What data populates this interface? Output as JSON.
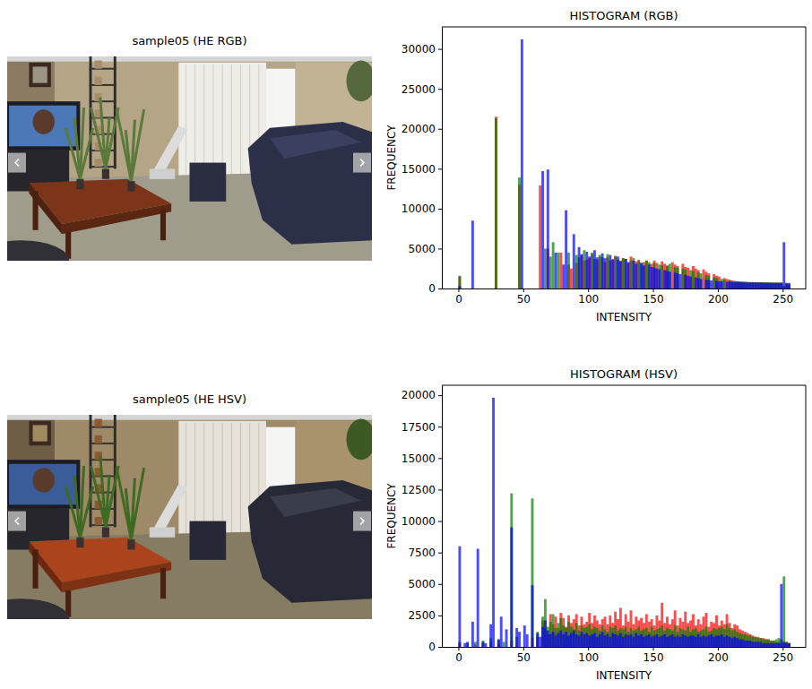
{
  "chart_data": [
    {
      "type": "image",
      "title": "sample05 (HE RGB)"
    },
    {
      "type": "histogram",
      "title": "HISTOGRAM (RGB)",
      "x_label": "INTENSITY",
      "y_label": "FREQUENCY",
      "bins": [
        0,
        2,
        4,
        6,
        8,
        10,
        12,
        14,
        16,
        18,
        20,
        22,
        24,
        26,
        28,
        30,
        32,
        34,
        36,
        38,
        40,
        42,
        44,
        46,
        48,
        50,
        52,
        54,
        56,
        58,
        60,
        62,
        64,
        66,
        68,
        70,
        72,
        74,
        76,
        78,
        80,
        82,
        84,
        86,
        88,
        90,
        92,
        94,
        96,
        98,
        100,
        102,
        104,
        106,
        108,
        110,
        112,
        114,
        116,
        118,
        120,
        122,
        124,
        126,
        128,
        130,
        132,
        134,
        136,
        138,
        140,
        142,
        144,
        146,
        148,
        150,
        152,
        154,
        156,
        158,
        160,
        162,
        164,
        166,
        168,
        170,
        172,
        174,
        176,
        178,
        180,
        182,
        184,
        186,
        188,
        190,
        192,
        194,
        196,
        198,
        200,
        202,
        204,
        206,
        208,
        210,
        212,
        214,
        216,
        218,
        220,
        222,
        224,
        226,
        228,
        230,
        232,
        234,
        236,
        238,
        240,
        242,
        244,
        246,
        248,
        250,
        252,
        254,
        256
      ],
      "series": [
        {
          "color": "red",
          "values": [
            1500,
            0,
            0,
            0,
            0,
            0,
            0,
            0,
            0,
            0,
            0,
            0,
            0,
            0,
            21500,
            0,
            0,
            0,
            0,
            0,
            0,
            0,
            0,
            13000,
            0,
            0,
            0,
            0,
            0,
            0,
            0,
            12900,
            0,
            0,
            5000,
            0,
            0,
            0,
            0,
            4500,
            0,
            0,
            3000,
            2500,
            0,
            3200,
            0,
            4200,
            3500,
            0,
            3800,
            4300,
            0,
            3600,
            4000,
            0,
            3300,
            3900,
            0,
            3700,
            4100,
            0,
            3500,
            3800,
            0,
            3200,
            4000,
            0,
            3400,
            3600,
            0,
            3300,
            3500,
            0,
            3100,
            3500,
            3200,
            0,
            3400,
            3100,
            2900,
            0,
            3300,
            3000,
            2800,
            0,
            3100,
            2700,
            2600,
            0,
            2800,
            2500,
            2300,
            0,
            2400,
            2100,
            1900,
            0,
            1800,
            1600,
            1500,
            0,
            1300,
            1200,
            1100,
            1000,
            950,
            900,
            900,
            850,
            850,
            800,
            800,
            800,
            800,
            780,
            780,
            760,
            760,
            750,
            750,
            740,
            740,
            730,
            730,
            300,
            700,
            500
          ]
        },
        {
          "color": "green",
          "values": [
            1600,
            0,
            0,
            0,
            0,
            0,
            0,
            0,
            0,
            0,
            0,
            0,
            0,
            0,
            21300,
            0,
            0,
            0,
            0,
            0,
            0,
            0,
            0,
            13900,
            0,
            0,
            0,
            0,
            0,
            0,
            0,
            0,
            0,
            5000,
            0,
            4000,
            5800,
            0,
            4500,
            0,
            0,
            0,
            4500,
            0,
            0,
            4200,
            3900,
            0,
            4800,
            3600,
            0,
            4500,
            3700,
            0,
            4200,
            3900,
            0,
            4300,
            3500,
            0,
            4000,
            3600,
            0,
            3800,
            3700,
            0,
            3500,
            3800,
            0,
            3400,
            3200,
            0,
            3500,
            3300,
            0,
            3200,
            0,
            3000,
            2900,
            0,
            2800,
            3100,
            0,
            2700,
            2600,
            0,
            2500,
            2400,
            0,
            2300,
            2200,
            0,
            2000,
            1900,
            0,
            1700,
            1600,
            0,
            1400,
            1300,
            0,
            1200,
            1100,
            0,
            1000,
            950,
            900,
            900,
            850,
            850,
            820,
            820,
            800,
            800,
            780,
            780,
            770,
            760,
            750,
            750,
            740,
            740,
            730,
            730,
            720,
            300,
            700,
            500
          ]
        },
        {
          "color": "blue",
          "values": [
            300,
            0,
            0,
            0,
            0,
            8500,
            0,
            0,
            0,
            0,
            0,
            0,
            0,
            0,
            0,
            0,
            0,
            0,
            0,
            0,
            0,
            0,
            0,
            0,
            31200,
            0,
            0,
            0,
            0,
            0,
            0,
            0,
            14700,
            0,
            14900,
            0,
            0,
            4500,
            0,
            0,
            3000,
            9800,
            0,
            0,
            6800,
            0,
            5200,
            4300,
            0,
            4600,
            4000,
            0,
            4800,
            3900,
            0,
            4400,
            3800,
            0,
            4200,
            3600,
            0,
            4000,
            3400,
            0,
            3700,
            3300,
            0,
            3500,
            3100,
            0,
            3200,
            2900,
            0,
            3000,
            2700,
            2600,
            2500,
            2400,
            0,
            2300,
            2200,
            2100,
            0,
            2000,
            1900,
            1800,
            0,
            1700,
            1600,
            1500,
            0,
            1400,
            1300,
            1200,
            0,
            1100,
            1050,
            1000,
            0,
            950,
            900,
            900,
            0,
            850,
            850,
            800,
            800,
            780,
            780,
            760,
            760,
            750,
            750,
            740,
            740,
            730,
            730,
            720,
            720,
            710,
            710,
            700,
            700,
            700,
            700,
            5800,
            600,
            700
          ]
        }
      ],
      "xlim": [
        -12.75,
        267.75
      ],
      "ylim": [
        0,
        32760
      ],
      "xticks": [
        0,
        50,
        100,
        150,
        200,
        250
      ],
      "yticks": [
        0,
        5000,
        10000,
        15000,
        20000,
        25000,
        30000
      ]
    },
    {
      "type": "image",
      "title": "sample05 (HE HSV)"
    },
    {
      "type": "histogram",
      "title": "HISTOGRAM (HSV)",
      "x_label": "INTENSITY",
      "y_label": "FREQUENCY",
      "bins": [
        0,
        2,
        4,
        6,
        8,
        10,
        12,
        14,
        16,
        18,
        20,
        22,
        24,
        26,
        28,
        30,
        32,
        34,
        36,
        38,
        40,
        42,
        44,
        46,
        48,
        50,
        52,
        54,
        56,
        58,
        60,
        62,
        64,
        66,
        68,
        70,
        72,
        74,
        76,
        78,
        80,
        82,
        84,
        86,
        88,
        90,
        92,
        94,
        96,
        98,
        100,
        102,
        104,
        106,
        108,
        110,
        112,
        114,
        116,
        118,
        120,
        122,
        124,
        126,
        128,
        130,
        132,
        134,
        136,
        138,
        140,
        142,
        144,
        146,
        148,
        150,
        152,
        154,
        156,
        158,
        160,
        162,
        164,
        166,
        168,
        170,
        172,
        174,
        176,
        178,
        180,
        182,
        184,
        186,
        188,
        190,
        192,
        194,
        196,
        198,
        200,
        202,
        204,
        206,
        208,
        210,
        212,
        214,
        216,
        218,
        220,
        222,
        224,
        226,
        228,
        230,
        232,
        234,
        236,
        238,
        240,
        242,
        244,
        246,
        248,
        250,
        252,
        254,
        256
      ],
      "series": [
        {
          "color": "red",
          "values": [
            300,
            0,
            0,
            0,
            0,
            0,
            200,
            0,
            0,
            300,
            0,
            0,
            400,
            0,
            0,
            300,
            0,
            0,
            0,
            0,
            500,
            0,
            0,
            0,
            0,
            0,
            0,
            0,
            700,
            0,
            800,
            0,
            2100,
            1500,
            1000,
            2600,
            1800,
            2400,
            1500,
            2700,
            2300,
            1600,
            2500,
            1900,
            2200,
            2600,
            1700,
            2400,
            1800,
            2000,
            2700,
            1900,
            2500,
            2100,
            1800,
            2200,
            2400,
            1800,
            2500,
            1900,
            2800,
            2200,
            3100,
            1700,
            2600,
            2000,
            2900,
            1800,
            2400,
            2100,
            2300,
            1900,
            2600,
            2000,
            2200,
            1700,
            2500,
            2100,
            3500,
            1900,
            2400,
            1800,
            2200,
            2900,
            1700,
            2300,
            2000,
            2800,
            1900,
            2100,
            2600,
            1700,
            2200,
            1800,
            2400,
            2700,
            1600,
            2000,
            1900,
            2500,
            1700,
            2100,
            1800,
            2600,
            1900,
            1500,
            1800,
            1700,
            1400,
            1300,
            1200,
            1100,
            1000,
            900,
            800,
            800,
            700,
            700,
            600,
            600,
            500,
            500,
            400,
            400,
            300,
            300,
            400,
            300
          ]
        },
        {
          "color": "green",
          "values": [
            400,
            0,
            0,
            300,
            0,
            0,
            400,
            0,
            0,
            500,
            0,
            0,
            700,
            0,
            0,
            600,
            0,
            400,
            0,
            0,
            12200,
            0,
            800,
            0,
            0,
            0,
            0,
            0,
            11800,
            0,
            1200,
            0,
            2400,
            3800,
            1600,
            2000,
            2600,
            1500,
            1900,
            2300,
            1700,
            1500,
            2000,
            1600,
            1400,
            1900,
            1300,
            1700,
            1500,
            1600,
            1800,
            1400,
            1600,
            1500,
            1300,
            1700,
            1400,
            1200,
            1600,
            1500,
            1700,
            1300,
            1500,
            1400,
            1600,
            1200,
            1500,
            1300,
            1400,
            1600,
            1300,
            1400,
            1500,
            1200,
            1600,
            1300,
            1400,
            1500,
            1700,
            1300,
            1500,
            1400,
            1300,
            1700,
            1200,
            1500,
            1400,
            1300,
            1600,
            1200,
            1400,
            1500,
            1200,
            1300,
            1400,
            1600,
            1200,
            1300,
            1500,
            1400,
            1500,
            1600,
            1400,
            1800,
            1500,
            1300,
            1400,
            1200,
            1100,
            1000,
            1000,
            900,
            900,
            800,
            800,
            700,
            700,
            600,
            600,
            600,
            500,
            500,
            600,
            700,
            600,
            5600,
            400,
            300
          ]
        },
        {
          "color": "blue",
          "values": [
            8000,
            0,
            300,
            400,
            0,
            2000,
            0,
            7800,
            0,
            400,
            300,
            0,
            1800,
            19800,
            0,
            600,
            2400,
            0,
            1400,
            0,
            9500,
            0,
            1500,
            1200,
            0,
            1700,
            1000,
            0,
            4900,
            0,
            1100,
            800,
            1600,
            2100,
            1300,
            1000,
            1200,
            900,
            1100,
            1300,
            1000,
            1200,
            900,
            1100,
            1300,
            1000,
            900,
            1200,
            1000,
            1100,
            900,
            1000,
            1100,
            800,
            1000,
            1200,
            900,
            1000,
            800,
            1100,
            1000,
            900,
            1100,
            800,
            1000,
            900,
            1000,
            800,
            1100,
            900,
            1000,
            800,
            900,
            1000,
            800,
            900,
            1000,
            800,
            900,
            1000,
            800,
            900,
            1000,
            800,
            900,
            800,
            1000,
            900,
            800,
            900,
            900,
            800,
            1000,
            800,
            900,
            800,
            900,
            1000,
            800,
            900,
            900,
            1000,
            800,
            900,
            800,
            700,
            800,
            700,
            600,
            600,
            500,
            500,
            500,
            400,
            400,
            400,
            400,
            300,
            300,
            300,
            300,
            300,
            300,
            300,
            5000,
            400,
            300,
            300
          ]
        }
      ],
      "xlim": [
        -12.75,
        267.75
      ],
      "ylim": [
        0,
        20790
      ],
      "xticks": [
        0,
        50,
        100,
        150,
        200,
        250
      ],
      "yticks": [
        0,
        2500,
        5000,
        7500,
        10000,
        12500,
        15000,
        17500,
        20000
      ]
    }
  ]
}
